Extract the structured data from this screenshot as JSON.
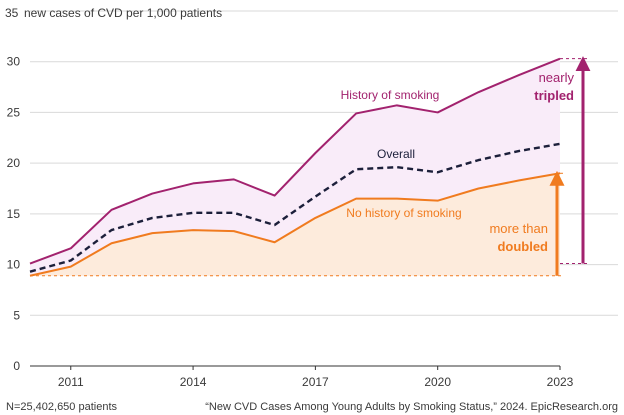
{
  "chart_data": {
    "type": "line",
    "ylabel": "new cases of CVD per 1,000 patients",
    "ylim": [
      0,
      35
    ],
    "yticks": [
      0,
      5,
      10,
      15,
      20,
      25,
      30,
      35
    ],
    "xlim": [
      2010,
      2023
    ],
    "xticks": [
      2011,
      2014,
      2017,
      2020,
      2023
    ],
    "grid": true,
    "x": [
      2010,
      2011,
      2012,
      2013,
      2014,
      2015,
      2016,
      2017,
      2018,
      2019,
      2020,
      2021,
      2022,
      2023
    ],
    "series": [
      {
        "name": "History of smoking",
        "color": "#a2226e",
        "style": "solid",
        "values": [
          10.1,
          11.6,
          15.4,
          17.0,
          18.0,
          18.4,
          16.8,
          21.0,
          24.9,
          25.7,
          25.0,
          27.0,
          28.7,
          30.3
        ]
      },
      {
        "name": "Overall",
        "color": "#1c1f3a",
        "style": "dashed",
        "values": [
          9.3,
          10.4,
          13.4,
          14.6,
          15.1,
          15.1,
          13.9,
          16.7,
          19.4,
          19.6,
          19.1,
          20.3,
          21.2,
          21.9
        ]
      },
      {
        "name": "No history of smoking",
        "color": "#f07b1f",
        "style": "solid",
        "values": [
          8.9,
          9.8,
          12.1,
          13.1,
          13.4,
          13.3,
          12.2,
          14.6,
          16.5,
          16.5,
          16.3,
          17.5,
          18.3,
          19.0
        ]
      }
    ],
    "annotations": {
      "tripled": {
        "line1": "nearly",
        "line2": "tripled",
        "color": "#a2226e"
      },
      "doubled": {
        "line1": "more than",
        "line2": "doubled",
        "color": "#f07b1f"
      }
    }
  },
  "footer": {
    "n_patients": "N=25,402,650 patients",
    "source": "“New CVD Cases Among Young Adults by Smoking Status,” 2024. EpicResearch.org"
  }
}
